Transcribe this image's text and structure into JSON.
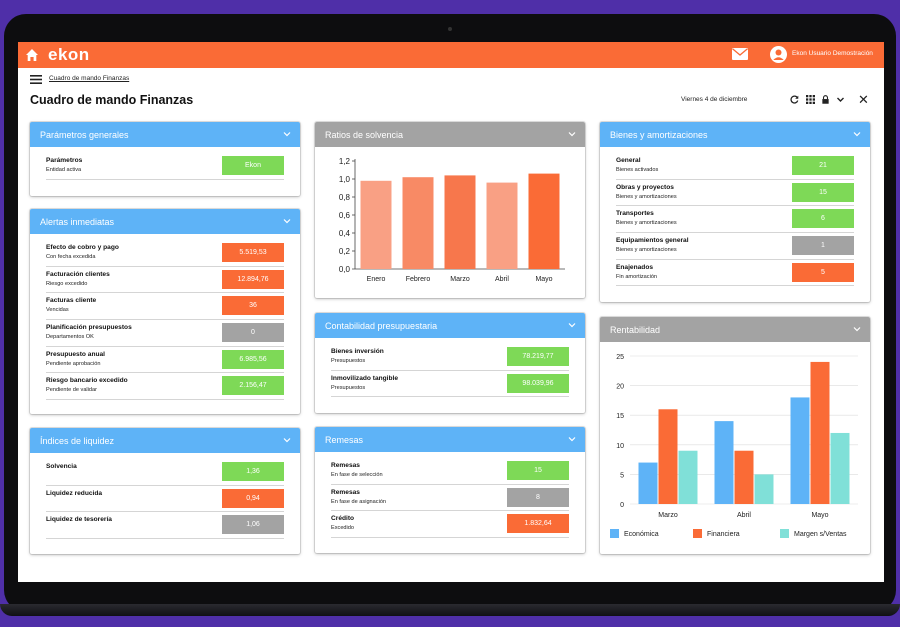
{
  "app": {
    "logo": "ekon",
    "user": "Ekon Usuario Demostración"
  },
  "nav": {
    "breadcrumb": "Cuadro de mando Finanzas",
    "title": "Cuadro de mando Finanzas",
    "date": "Viernes 4 de diciembre"
  },
  "colors": {
    "orange": "#fa6b36",
    "blue": "#5eb3f7",
    "green": "#7ed957",
    "grey": "#a3a3a3"
  },
  "parametros": {
    "title": "Parámetros generales",
    "rows": [
      {
        "t": "Parámetros",
        "s": "Entidad activa",
        "v": "Ekon",
        "c": "green"
      }
    ]
  },
  "alertas": {
    "title": "Alertas inmediatas",
    "rows": [
      {
        "t": "Efecto de cobro y pago",
        "s": "Con fecha excedida",
        "v": "5.519,53",
        "c": "orange"
      },
      {
        "t": "Facturación clientes",
        "s": "Riesgo excedido",
        "v": "12.894,76",
        "c": "orange"
      },
      {
        "t": "Facturas cliente",
        "s": "Vencidas",
        "v": "36",
        "c": "orange"
      },
      {
        "t": "Planificación presupuestos",
        "s": "Departamentos OK",
        "v": "0",
        "c": "grey"
      },
      {
        "t": "Presupuesto anual",
        "s": "Pendiente aprobación",
        "v": "6.985,56",
        "c": "green"
      },
      {
        "t": "Riesgo bancario excedido",
        "s": "Pendiente de validar",
        "v": "2.156,47",
        "c": "green"
      }
    ]
  },
  "liquidez": {
    "title": "Índices de liquidez",
    "rows": [
      {
        "t": "Solvencia",
        "s": "",
        "v": "1,36",
        "c": "green"
      },
      {
        "t": "Liquidez reducida",
        "s": "",
        "v": "0,94",
        "c": "orange"
      },
      {
        "t": "Liquidez de tesorería",
        "s": "",
        "v": "1,06",
        "c": "grey"
      }
    ]
  },
  "contabilidad": {
    "title": "Contabilidad presupuestaria",
    "rows": [
      {
        "t": "Bienes inversión",
        "s": "Presupuestos",
        "v": "78.219,77",
        "c": "green"
      },
      {
        "t": "Inmovilizado tangible",
        "s": "Presupuestos",
        "v": "98.039,96",
        "c": "green"
      }
    ]
  },
  "remesas": {
    "title": "Remesas",
    "rows": [
      {
        "t": "Remesas",
        "s": "En fase de selección",
        "v": "15",
        "c": "green"
      },
      {
        "t": "Remesas",
        "s": "En fase de asignación",
        "v": "8",
        "c": "grey"
      },
      {
        "t": "Crédito",
        "s": "Excedido",
        "v": "1.832,64",
        "c": "orange"
      }
    ]
  },
  "bienes": {
    "title": "Bienes y amortizaciones",
    "rows": [
      {
        "t": "General",
        "s": "Bienes activados",
        "v": "21",
        "c": "green"
      },
      {
        "t": "Obras y proyectos",
        "s": "Bienes y amortizaciones",
        "v": "15",
        "c": "green"
      },
      {
        "t": "Transportes",
        "s": "Bienes y amortizaciones",
        "v": "6",
        "c": "green"
      },
      {
        "t": "Equipamientos general",
        "s": "Bienes y amortizaciones",
        "v": "1",
        "c": "grey"
      },
      {
        "t": "Enajenados",
        "s": "Fin amortización",
        "v": "5",
        "c": "orange"
      }
    ]
  },
  "chart_data": [
    {
      "title": "Ratios de solvencia",
      "type": "bar",
      "categories": [
        "Enero",
        "Febrero",
        "Marzo",
        "Abril",
        "Mayo"
      ],
      "values": [
        0.98,
        1.02,
        1.04,
        0.96,
        1.06
      ],
      "colors": [
        "#f9a084",
        "#f88a65",
        "#f7774c",
        "#f9a084",
        "#fa6b36"
      ],
      "ylim": [
        0,
        1.2
      ],
      "yticks": [
        "0,0",
        "0,2",
        "0,4",
        "0,6",
        "0,8",
        "1,0",
        "1,2"
      ],
      "grid": false
    },
    {
      "title": "Rentabilidad",
      "type": "bar",
      "categories": [
        "Marzo",
        "Abril",
        "Mayo"
      ],
      "series": [
        {
          "name": "Económica",
          "values": [
            7,
            14,
            18
          ],
          "color": "#5eb3f7"
        },
        {
          "name": "Financiera",
          "values": [
            16,
            9,
            24
          ],
          "color": "#fa6b36"
        },
        {
          "name": "Margen s/Ventas",
          "values": [
            9,
            5,
            12
          ],
          "color": "#80e0d8"
        }
      ],
      "ylim": [
        0,
        25
      ],
      "yticks": [
        "0",
        "5",
        "10",
        "15",
        "20",
        "25"
      ],
      "legend": "bottom",
      "grid": true
    }
  ]
}
